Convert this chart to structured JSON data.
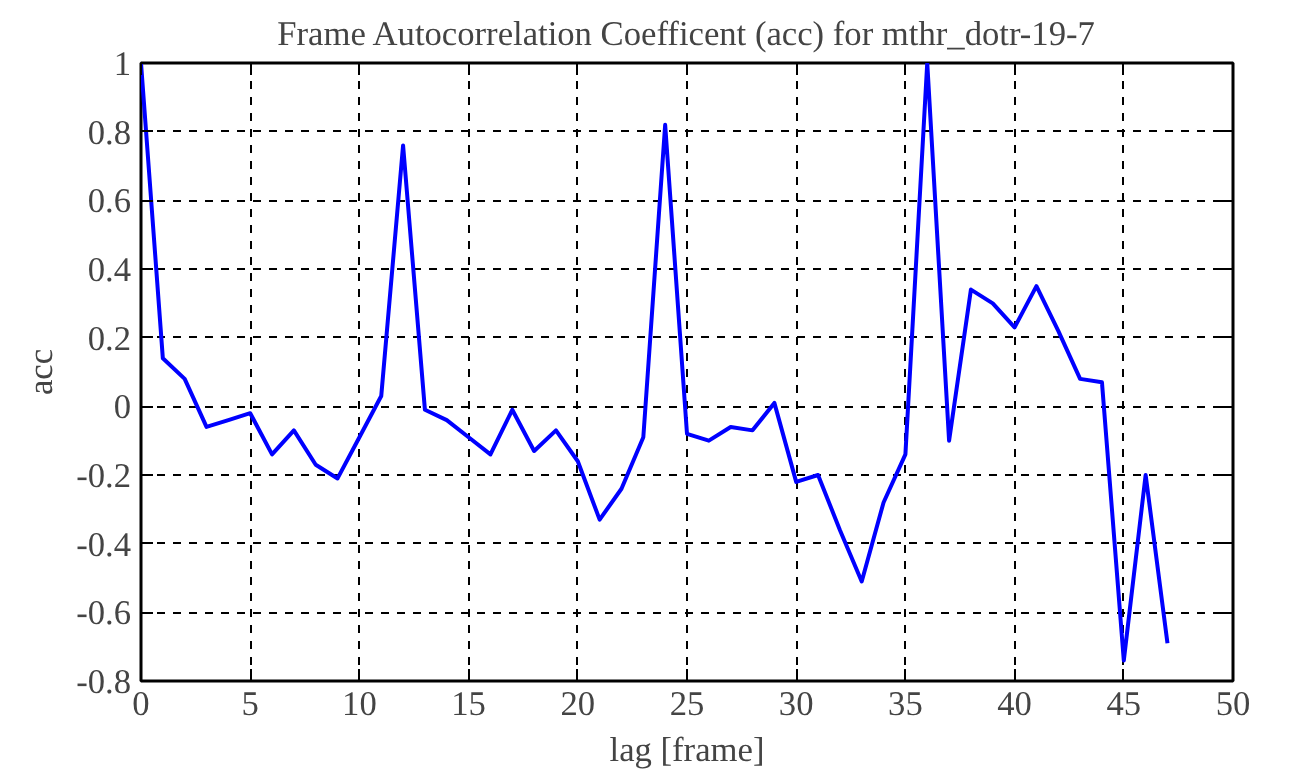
{
  "chart_data": {
    "type": "line",
    "title": "Frame Autocorrelation Coefficent (acc) for mthr_dotr-19-7",
    "xlabel": "lag [frame]",
    "ylabel": "acc",
    "x": [
      0,
      1,
      2,
      3,
      4,
      5,
      6,
      7,
      8,
      9,
      10,
      11,
      12,
      13,
      14,
      15,
      16,
      17,
      18,
      19,
      20,
      21,
      22,
      23,
      24,
      25,
      26,
      27,
      28,
      29,
      30,
      31,
      32,
      33,
      34,
      35,
      36,
      37,
      38,
      39,
      40,
      41,
      42,
      43,
      44,
      45,
      46,
      47
    ],
    "series": [
      {
        "color": "#0000ff",
        "values": [
          1,
          0.14,
          0.08,
          -0.06,
          -0.04,
          -0.02,
          -0.14,
          -0.07,
          -0.17,
          -0.21,
          -0.09,
          0.03,
          0.76,
          -0.01,
          -0.04,
          -0.09,
          -0.14,
          -0.01,
          -0.13,
          -0.07,
          -0.16,
          -0.33,
          -0.24,
          -0.09,
          0.82,
          -0.08,
          -0.1,
          -0.06,
          -0.07,
          0.01,
          -0.22,
          -0.2,
          -0.36,
          -0.51,
          -0.28,
          -0.14,
          1,
          -0.1,
          0.34,
          0.3,
          0.23,
          0.35,
          0.22,
          0.08,
          0.07,
          -0.74,
          -0.2,
          -0.69
        ]
      }
    ],
    "xlim": [
      0,
      50
    ],
    "xticks": [
      0,
      5,
      10,
      15,
      20,
      25,
      30,
      35,
      40,
      45,
      50
    ],
    "ylim": [
      -0.8,
      1
    ],
    "yticks": [
      -0.8,
      -0.6,
      -0.4,
      -0.2,
      0,
      0.2,
      0.4,
      0.6,
      0.8,
      1
    ],
    "grid": true,
    "line_style": "solid",
    "marker": "none"
  }
}
